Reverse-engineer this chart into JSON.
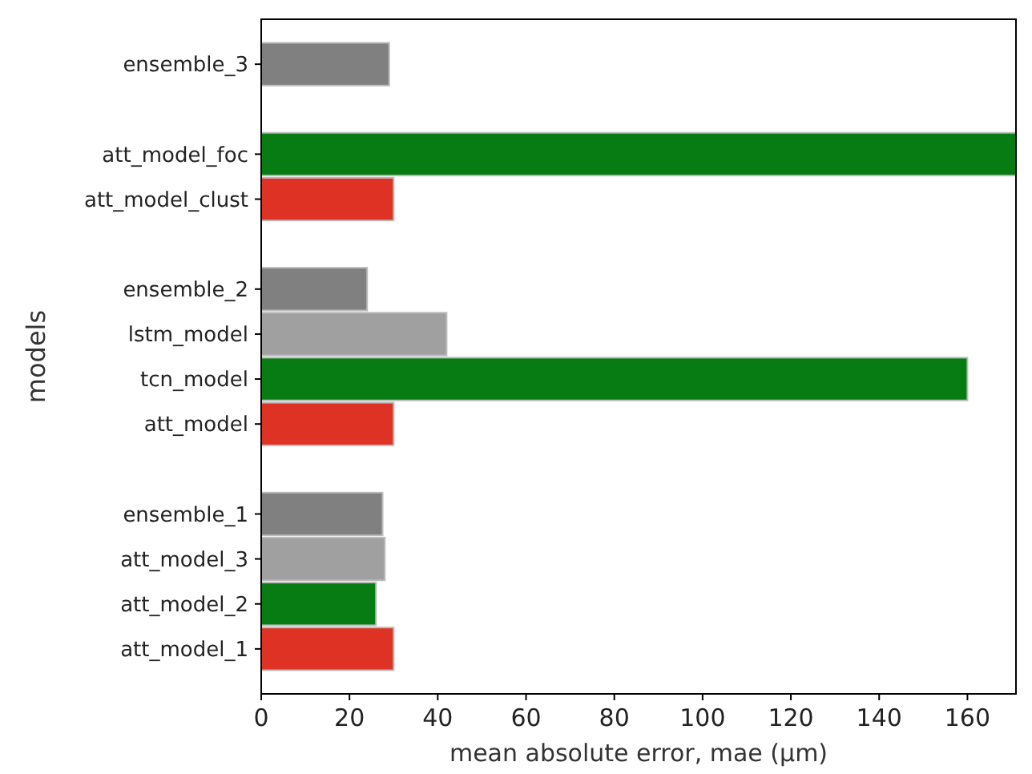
{
  "chart_data": {
    "type": "bar",
    "orientation": "horizontal",
    "xlabel": "mean absolute error, mae (µm)",
    "ylabel": "models",
    "categories": [
      "ensemble_3",
      null,
      "att_model_foc",
      "att_model_clust",
      null,
      "ensemble_2",
      "lstm_model",
      "tcn_model",
      "att_model",
      null,
      "ensemble_1",
      "att_model_3",
      "att_model_2",
      "att_model_1"
    ],
    "values": [
      29,
      null,
      171,
      30,
      null,
      24,
      42,
      160,
      30,
      null,
      27.5,
      28,
      26,
      30
    ],
    "colors": [
      "#808080",
      null,
      "#067c13",
      "#de3324",
      null,
      "#808080",
      "#a0a0a0",
      "#067c13",
      "#de3324",
      null,
      "#808080",
      "#a0a0a0",
      "#067c13",
      "#de3324"
    ],
    "xlim": [
      0,
      171
    ],
    "xticks": [
      0,
      20,
      40,
      60,
      80,
      100,
      120,
      140,
      160
    ],
    "grid": false
  }
}
